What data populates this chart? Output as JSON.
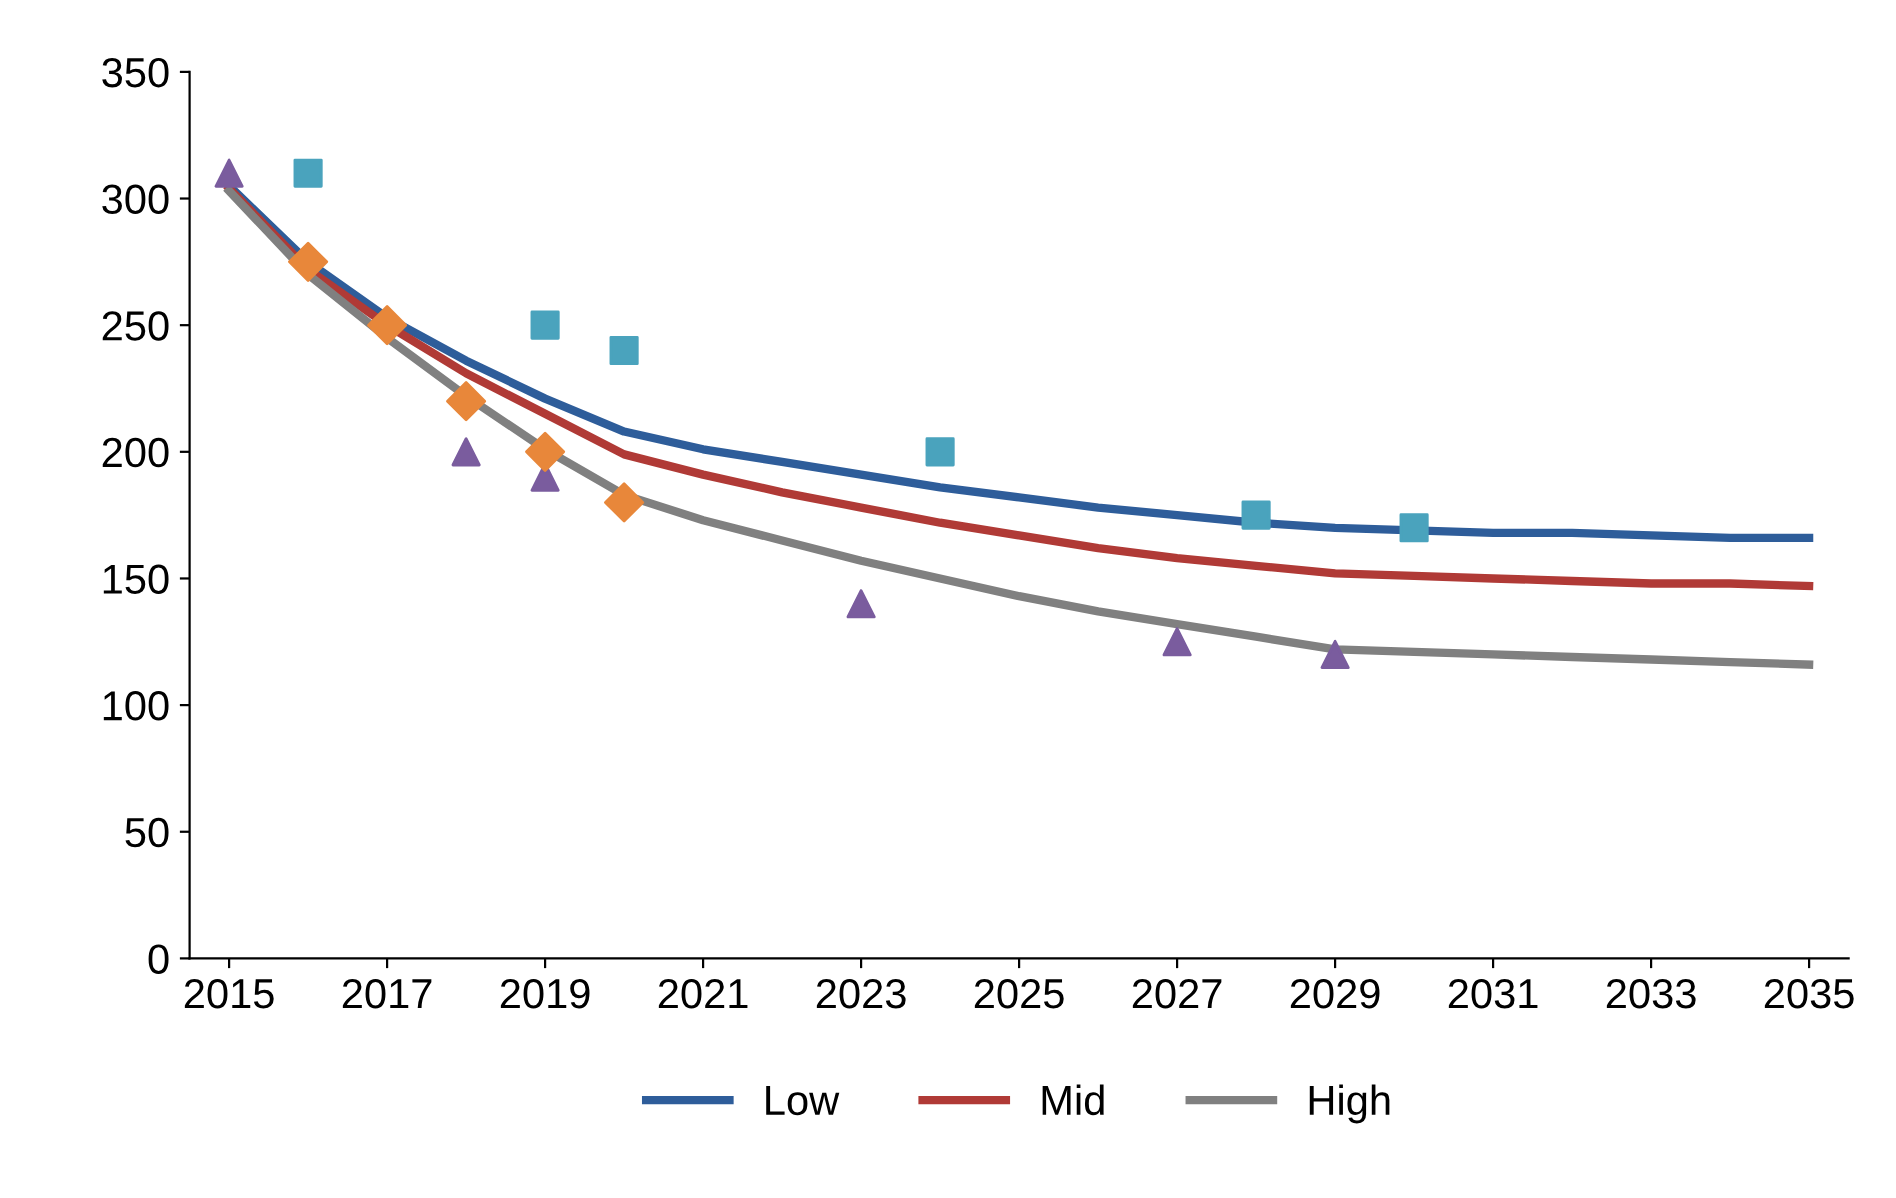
{
  "chart_data": {
    "type": "line",
    "xlim": [
      2014.5,
      2035.5
    ],
    "xticks": [
      2015,
      2017,
      2019,
      2021,
      2023,
      2025,
      2027,
      2029,
      2031,
      2033,
      2035
    ],
    "ylim": [
      0,
      350
    ],
    "yticks": [
      0,
      50,
      100,
      150,
      200,
      250,
      300,
      350
    ],
    "grid": false,
    "legend": "bottom",
    "series": [
      {
        "name": "Low",
        "color": "#2e5d9a",
        "marker": "none",
        "x": [
          2015,
          2016,
          2017,
          2018,
          2019,
          2020,
          2021,
          2022,
          2023,
          2024,
          2025,
          2026,
          2027,
          2028,
          2029,
          2030,
          2031,
          2032,
          2033,
          2034,
          2035
        ],
        "values": [
          305,
          275,
          253,
          236,
          221,
          208,
          201,
          196,
          191,
          186,
          182,
          178,
          175,
          172,
          170,
          169,
          168,
          168,
          167,
          166,
          166
        ]
      },
      {
        "name": "Mid",
        "color": "#b03a36",
        "marker": "none",
        "x": [
          2015,
          2016,
          2017,
          2018,
          2019,
          2020,
          2021,
          2022,
          2023,
          2024,
          2025,
          2026,
          2027,
          2028,
          2029,
          2030,
          2031,
          2032,
          2033,
          2034,
          2035
        ],
        "values": [
          304,
          272,
          250,
          231,
          215,
          199,
          191,
          184,
          178,
          172,
          167,
          162,
          158,
          155,
          152,
          151,
          150,
          149,
          148,
          148,
          147
        ]
      },
      {
        "name": "High",
        "color": "#808080",
        "marker": "none",
        "x": [
          2015,
          2016,
          2017,
          2018,
          2019,
          2020,
          2021,
          2022,
          2023,
          2024,
          2025,
          2026,
          2027,
          2028,
          2029,
          2030,
          2031,
          2032,
          2033,
          2034,
          2035
        ],
        "values": [
          303,
          270,
          245,
          222,
          201,
          183,
          173,
          165,
          157,
          150,
          143,
          137,
          132,
          127,
          122,
          121,
          120,
          119,
          118,
          117,
          116
        ]
      },
      {
        "type": "scatter",
        "color": "#7a5c9e",
        "marker": "triangle",
        "x": [
          2015,
          2018,
          2019,
          2023,
          2027,
          2029
        ],
        "values": [
          310,
          200,
          190,
          140,
          125,
          120
        ]
      },
      {
        "type": "scatter",
        "color": "#4aa3bd",
        "marker": "square",
        "x": [
          2016,
          2019,
          2020,
          2024,
          2028,
          2030
        ],
        "values": [
          310,
          250,
          240,
          200,
          175,
          170
        ]
      },
      {
        "type": "scatter",
        "color": "#e8873a",
        "marker": "diamond",
        "x": [
          2016,
          2017,
          2018,
          2019,
          2020
        ],
        "values": [
          275,
          250,
          220,
          200,
          180
        ]
      }
    ]
  }
}
